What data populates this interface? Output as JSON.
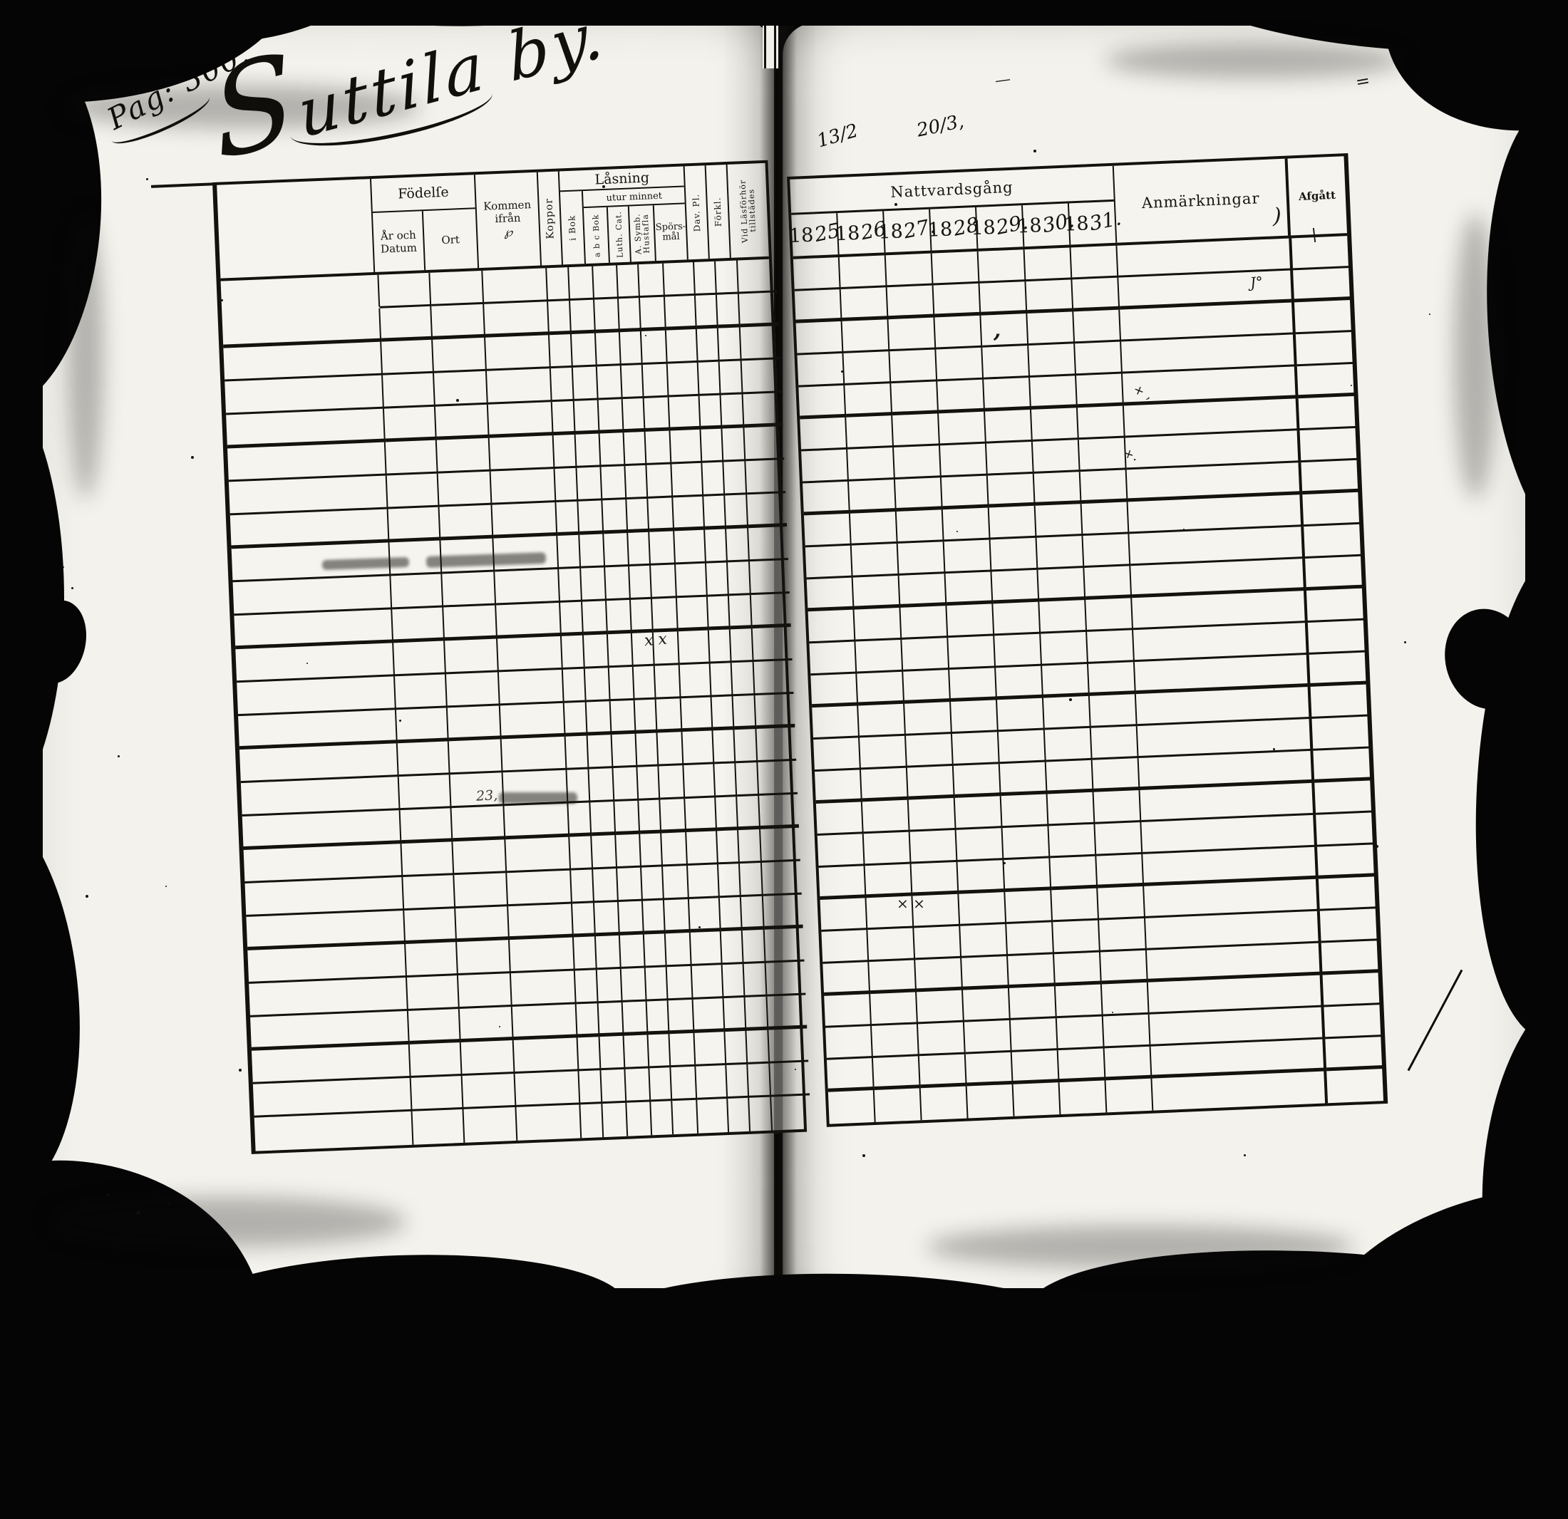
{
  "document": {
    "page_label": "Pag: 300.",
    "village_title": "Suttila by.",
    "annotations": {
      "fraction_left": "13/2",
      "fraction_right": "20/3,",
      "jo_mark": "J°",
      "xx_left": "x x",
      "xx_right": "× ×",
      "plus_mark_1": "+ ,",
      "plus_mark_2": "+.",
      "paren_mark": ")",
      "afgatt_tick": "\\",
      "comma_blot": ",",
      "smudge_number": "23,",
      "dash_mark_left": "—",
      "dash_mark_right": "="
    }
  },
  "left_table": {
    "groups": {
      "fodelse": "Födelſe",
      "lasning": "Låsning",
      "utur_minnet": "utur minnet"
    },
    "columns": {
      "ar_och_datum": "År och Datum",
      "ort": "Ort",
      "kommen_ifran": "Kommen ifrån",
      "kommen_mark": "℘",
      "koppor": "Koppor",
      "i_bok": "i Bok",
      "abc_bok": "a b c Bok",
      "luth_cat": "Luth. Cat.",
      "a_symb_hustafla": "A. Symb. Hustafla",
      "sporsmal": "Spörs-mål",
      "dav_pl": "Dav. Pl.",
      "forkl": "Förkl.",
      "vid_lasforhor": "Vid Läsförhör tillstädes"
    }
  },
  "right_table": {
    "group": "Nattvardsgång",
    "years": [
      {
        "prefix": "18",
        "suffix": "25"
      },
      {
        "prefix": "18",
        "suffix": "26"
      },
      {
        "prefix": "18",
        "suffix": "27."
      },
      {
        "prefix": "18",
        "suffix": "28"
      },
      {
        "prefix": "18",
        "suffix": "29."
      },
      {
        "prefix": "18",
        "suffix": "30."
      },
      {
        "prefix": "18",
        "suffix": "31."
      }
    ],
    "anmarkningar": "Anmärkningar",
    "afgatt": "Afgått"
  }
}
